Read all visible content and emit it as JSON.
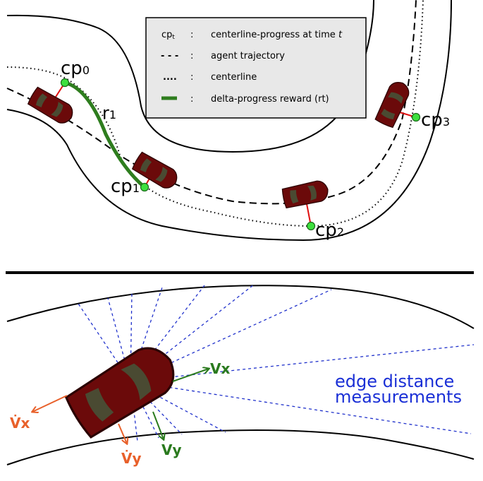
{
  "legend": {
    "rows": [
      {
        "symbol": "cpt",
        "symbol_sub": "t",
        "sep": ":",
        "text": "centerline-progress at time",
        "text_italic": "t"
      },
      {
        "symbol": "- - -",
        "sep": ":",
        "text": "agent trajectory"
      },
      {
        "symbol": "....",
        "sep": ":",
        "text": "centerline"
      },
      {
        "symbol": "",
        "sep": ":",
        "text": "delta-progress reward (rt)"
      }
    ]
  },
  "track": {
    "checkpoints": [
      {
        "label": "cp",
        "sub": "0"
      },
      {
        "label": "cp",
        "sub": "1"
      },
      {
        "label": "cp",
        "sub": "2"
      },
      {
        "label": "cp",
        "sub": "3"
      }
    ],
    "reward_label": "r",
    "reward_sub": "1"
  },
  "sensor": {
    "caption_line1": "edge distance",
    "caption_line2": "measurements",
    "vx": "Vx",
    "vy": "Vy",
    "vx_dot": "V̇x",
    "vy_dot": "V̇y"
  },
  "colors": {
    "car_body": "#6b0a0a",
    "car_window": "#4a4a32",
    "reward": "#2e7d1e",
    "checkpoint": "#3ee03e",
    "caption": "#1a2fd6",
    "velocity_green": "#2a7a1e",
    "velocity_orange": "#e8602a",
    "ray": "#2233cc",
    "legend_bg": "#e8e8e8"
  }
}
